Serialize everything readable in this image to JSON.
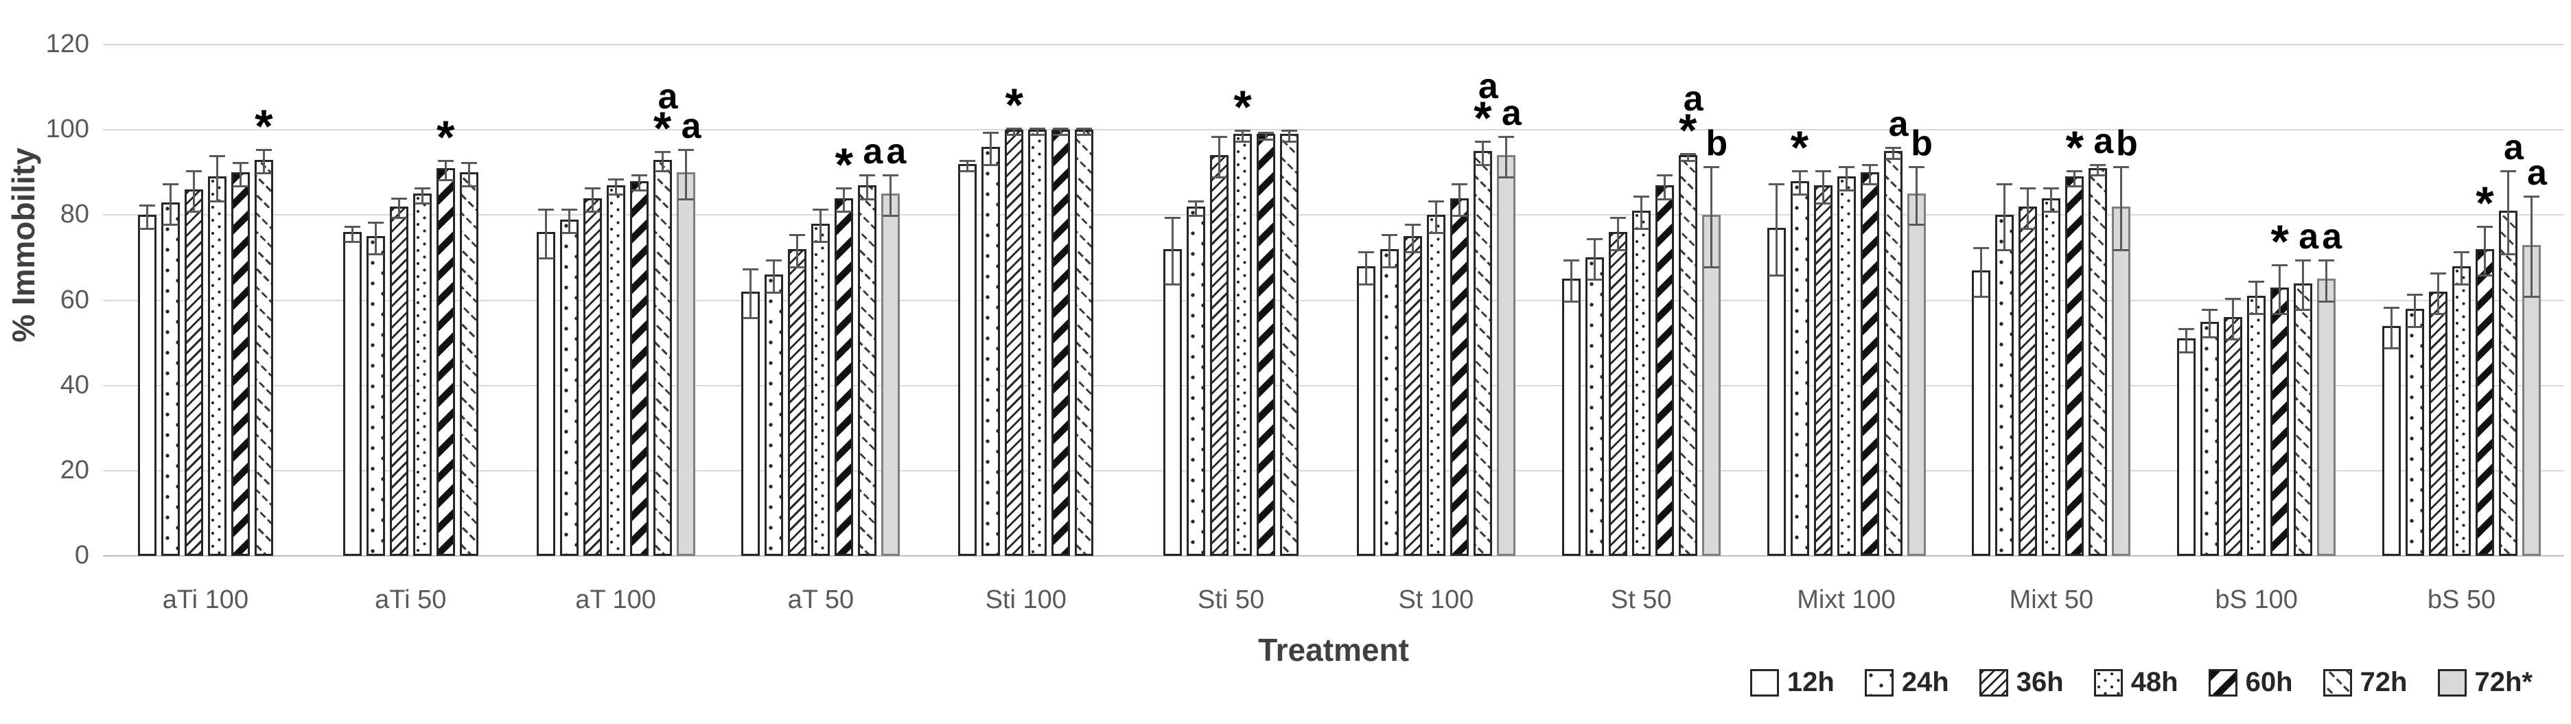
{
  "chart_data": {
    "type": "bar",
    "title": "",
    "xlabel": "Treatment",
    "ylabel": "% Immobility",
    "ylim": [
      0,
      120
    ],
    "yticks": [
      0,
      20,
      40,
      60,
      80,
      100,
      120
    ],
    "grid": true,
    "legend_position": "bottom-right",
    "series": [
      "12h",
      "24h",
      "36h",
      "48h",
      "60h",
      "72h",
      "72h*"
    ],
    "groups": [
      {
        "label": "aTi 100",
        "values": [
          80,
          83,
          86,
          89,
          90,
          93
        ],
        "errors": [
          3,
          5,
          5,
          5.5,
          3,
          3
        ],
        "marks": [
          null,
          null,
          null,
          null,
          null,
          "*"
        ]
      },
      {
        "label": "aTi 50",
        "values": [
          76,
          75,
          82,
          85,
          91,
          90
        ],
        "errors": [
          2,
          4,
          2.5,
          2,
          2.5,
          3
        ],
        "marks": [
          null,
          null,
          null,
          null,
          "*",
          null
        ]
      },
      {
        "label": "aT 100",
        "values": [
          76,
          79,
          84,
          87,
          88,
          93,
          90
        ],
        "errors": [
          6,
          3,
          3,
          2,
          2,
          2.5,
          6
        ],
        "marks": [
          null,
          null,
          null,
          null,
          null,
          "a*",
          "a"
        ]
      },
      {
        "label": "aT 50",
        "values": [
          62,
          66,
          72,
          78,
          84,
          87,
          85
        ],
        "errors": [
          6,
          4,
          4,
          4,
          3,
          3,
          5
        ],
        "marks": [
          null,
          null,
          null,
          null,
          "*",
          "a",
          "a"
        ]
      },
      {
        "label": "Sti 100",
        "values": [
          92,
          96,
          100,
          100,
          100,
          100
        ],
        "errors": [
          1.5,
          4,
          1,
          1,
          1,
          1
        ],
        "marks": [
          null,
          null,
          "*",
          null,
          null,
          null
        ]
      },
      {
        "label": "Sti 50",
        "values": [
          72,
          82,
          94,
          99,
          99,
          99
        ],
        "errors": [
          8,
          2,
          5,
          1.5,
          1,
          1.5
        ],
        "marks": [
          null,
          null,
          null,
          "*",
          null,
          null
        ]
      },
      {
        "label": "St 100",
        "values": [
          68,
          72,
          75,
          80,
          84,
          95,
          94
        ],
        "errors": [
          4,
          4,
          3.5,
          4,
          4,
          3,
          5
        ],
        "marks": [
          null,
          null,
          null,
          null,
          null,
          "a*",
          "a"
        ]
      },
      {
        "label": "St 50",
        "values": [
          65,
          70,
          76,
          81,
          87,
          94,
          80
        ],
        "errors": [
          5,
          5,
          4,
          4,
          3,
          1,
          12
        ],
        "marks": [
          null,
          null,
          null,
          null,
          null,
          "a*",
          "b"
        ]
      },
      {
        "label": "Mixt 100",
        "values": [
          77,
          88,
          87,
          89,
          90,
          95,
          85
        ],
        "errors": [
          11,
          3,
          4,
          3,
          2.5,
          1.5,
          7
        ],
        "marks": [
          null,
          "*",
          null,
          null,
          null,
          "a",
          "b"
        ]
      },
      {
        "label": "Mixt 50",
        "values": [
          67,
          80,
          82,
          84,
          89,
          91,
          82
        ],
        "errors": [
          6,
          8,
          5,
          3,
          2,
          1.5,
          10
        ],
        "marks": [
          null,
          null,
          null,
          null,
          "*",
          "a",
          "b"
        ]
      },
      {
        "label": "bS 100",
        "values": [
          51,
          55,
          56,
          61,
          63,
          64,
          65
        ],
        "errors": [
          3,
          3.5,
          5,
          4,
          6,
          6,
          5
        ],
        "marks": [
          null,
          null,
          null,
          null,
          "*",
          "a",
          "a"
        ]
      },
      {
        "label": "bS 50",
        "values": [
          54,
          58,
          62,
          68,
          72,
          81,
          73
        ],
        "errors": [
          5,
          4,
          5,
          4,
          6,
          10,
          12
        ],
        "marks": [
          null,
          null,
          null,
          null,
          "*",
          "a",
          "a"
        ]
      }
    ]
  }
}
